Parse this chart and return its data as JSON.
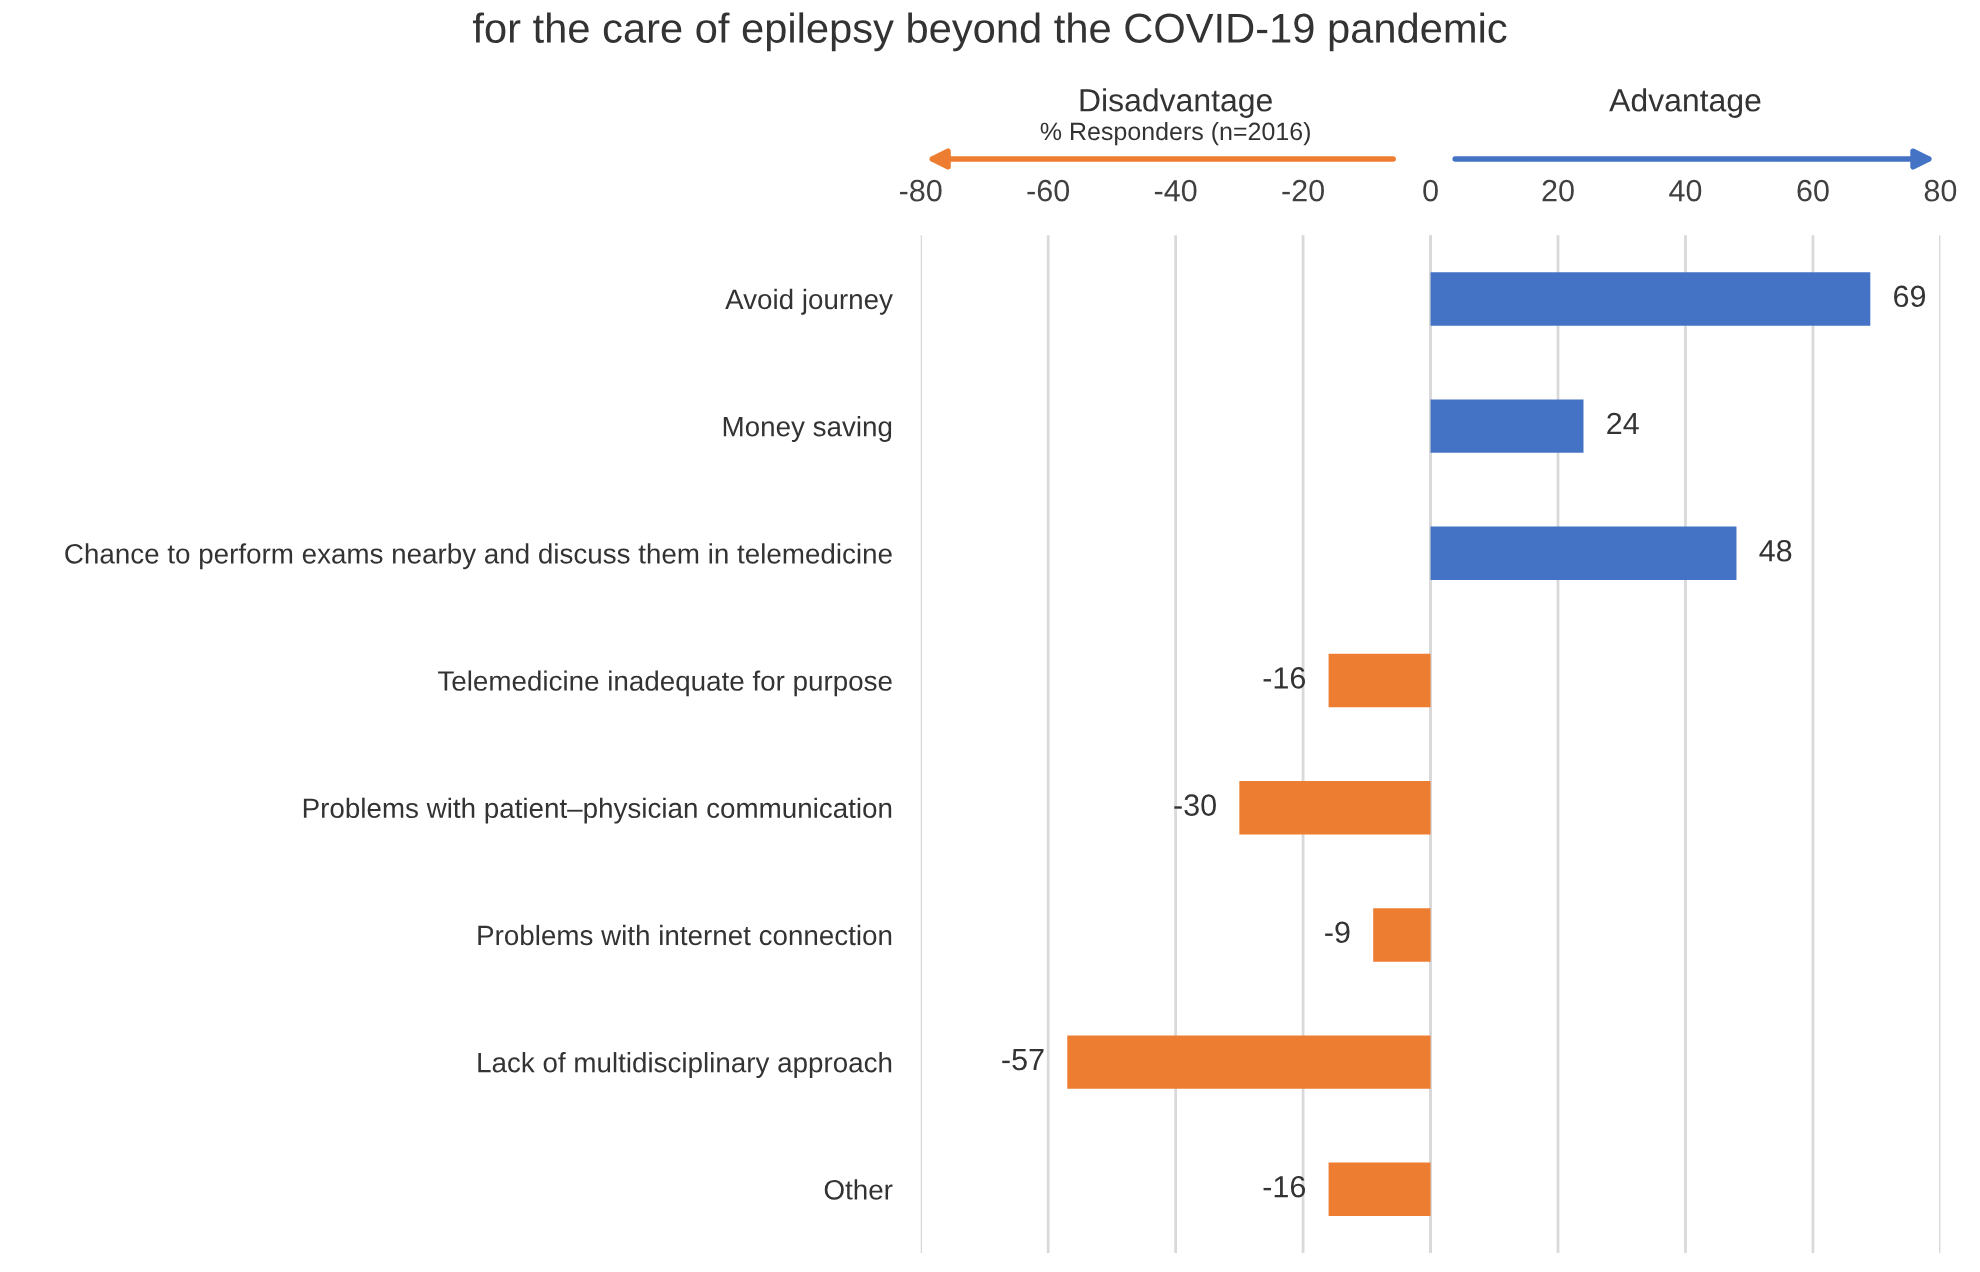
{
  "chart_data": {
    "type": "bar",
    "orientation": "horizontal",
    "title": "for the care of epilepsy beyond the COVID-19 pandemic",
    "xlabel": "% Responders (n=2016)",
    "categories": [
      "Avoid journey",
      "Money saving",
      "Chance to perform exams nearby and discuss them in telemedicine",
      "Telemedicine inadequate for purpose",
      "Problems with patient–physician communication",
      "Problems with internet connection",
      "Lack of multidisciplinary approach",
      "Other"
    ],
    "values": [
      69,
      24,
      48,
      -16,
      -30,
      -9,
      -57,
      -16
    ],
    "colors": [
      "#4472c4",
      "#4472c4",
      "#4472c4",
      "#ed7d31",
      "#ed7d31",
      "#ed7d31",
      "#ed7d31",
      "#ed7d31"
    ],
    "xlim": [
      -80,
      80
    ],
    "xticks": [
      -80,
      -60,
      -40,
      -20,
      0,
      20,
      40,
      60,
      80
    ],
    "grid": "x",
    "data_labels": true,
    "annotations": [
      "Disadvantage",
      "Advantage"
    ]
  }
}
